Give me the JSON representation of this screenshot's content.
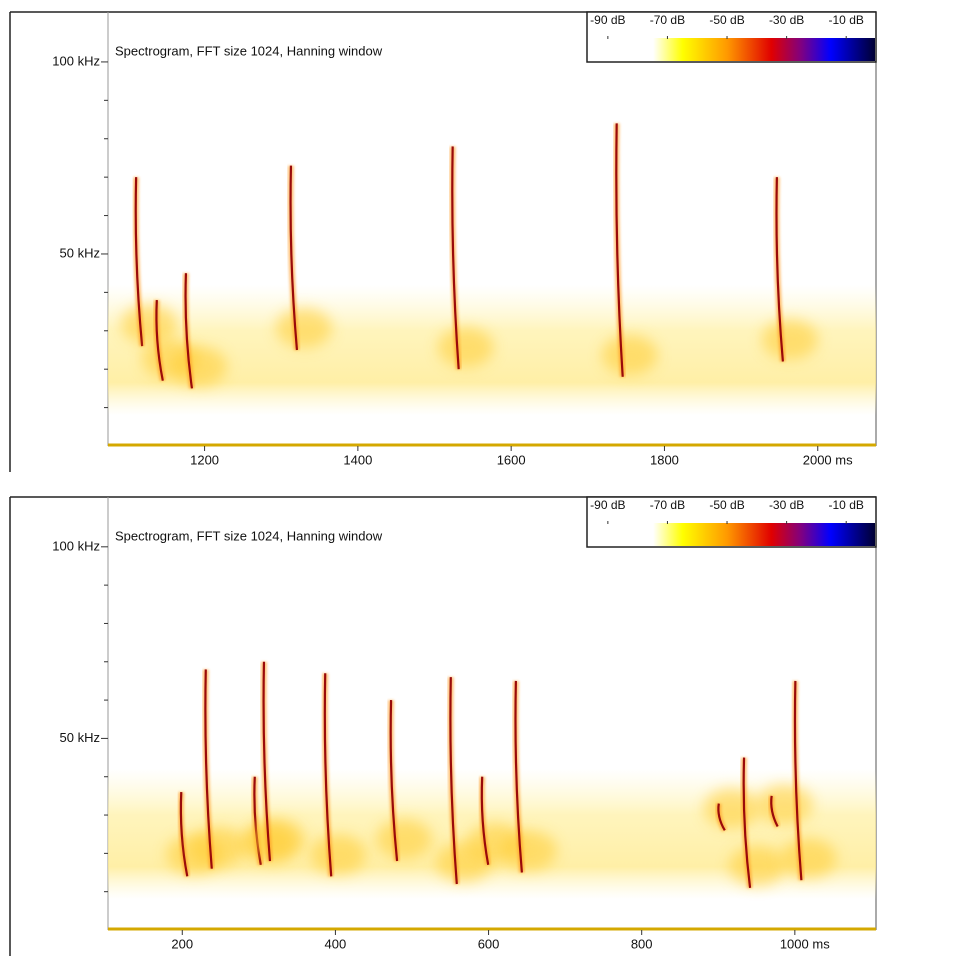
{
  "chart_data": [
    {
      "type": "spectrogram",
      "title": "Spectrogram, FFT size 1024, Hanning window",
      "xlim": [
        1074,
        2076
      ],
      "ylim": [
        0,
        113
      ],
      "xticks": [
        1200,
        1400,
        1600,
        1800,
        {
          "value": 2000,
          "label": "2000 ms"
        }
      ],
      "yticks": [
        {
          "value": 50,
          "label": "50 kHz"
        },
        {
          "value": 100,
          "label": "100 kHz"
        }
      ],
      "yminorticks": [
        10,
        20,
        30,
        40,
        60,
        70,
        80,
        90
      ],
      "calls": {
        "x": [
          1112,
          1139,
          1177,
          1314,
          1525,
          1739,
          1948
        ],
        "top": [
          70,
          38,
          45,
          73,
          78,
          84,
          70
        ],
        "bottom": [
          26,
          17,
          15,
          25,
          20,
          18,
          22
        ]
      },
      "colorbar": {
        "lim": [
          -97,
          0
        ],
        "ticks": [
          {
            "value": -90,
            "label": "-90 dB"
          },
          {
            "value": -70,
            "label": "-70 dB"
          },
          {
            "value": -50,
            "label": "-50 dB"
          },
          {
            "value": -30,
            "label": "-30 dB"
          },
          {
            "value": -10,
            "label": "-10 dB"
          }
        ],
        "colormap": [
          {
            "value": -97,
            "color": "#ffffff"
          },
          {
            "value": -75,
            "color": "#ffffff"
          },
          {
            "value": -65,
            "color": "#ffff00"
          },
          {
            "value": -50,
            "color": "#ff9900"
          },
          {
            "value": -35,
            "color": "#e00000"
          },
          {
            "value": -25,
            "color": "#800080"
          },
          {
            "value": -15,
            "color": "#0000ff"
          },
          {
            "value": 0,
            "color": "#000033"
          }
        ]
      }
    },
    {
      "type": "spectrogram",
      "title": "Spectrogram, FFT size 1024, Hanning window",
      "xlim": [
        103,
        1106
      ],
      "ylim": [
        0,
        113
      ],
      "xticks": [
        200,
        400,
        600,
        800,
        {
          "value": 1000,
          "label": "1000 ms"
        }
      ],
      "yticks": [
        {
          "value": 50,
          "label": "50 kHz"
        },
        {
          "value": 100,
          "label": "100 kHz"
        }
      ],
      "yminorticks": [
        10,
        20,
        30,
        40,
        60,
        70,
        80,
        90
      ],
      "calls": {
        "x": [
          200,
          232,
          296,
          308,
          388,
          474,
          552,
          593,
          637,
          902,
          935,
          971,
          1002
        ],
        "top": [
          36,
          68,
          40,
          70,
          67,
          60,
          66,
          40,
          65,
          33,
          45,
          35,
          65
        ],
        "bottom": [
          14,
          16,
          17,
          18,
          14,
          18,
          12,
          17,
          15,
          26,
          11,
          27,
          13
        ]
      },
      "colorbar": {
        "lim": [
          -97,
          0
        ],
        "ticks": [
          {
            "value": -90,
            "label": "-90 dB"
          },
          {
            "value": -70,
            "label": "-70 dB"
          },
          {
            "value": -50,
            "label": "-50 dB"
          },
          {
            "value": -30,
            "label": "-30 dB"
          },
          {
            "value": -10,
            "label": "-10 dB"
          }
        ],
        "colormap": [
          {
            "value": -97,
            "color": "#ffffff"
          },
          {
            "value": -75,
            "color": "#ffffff"
          },
          {
            "value": -65,
            "color": "#ffff00"
          },
          {
            "value": -50,
            "color": "#ff9900"
          },
          {
            "value": -35,
            "color": "#e00000"
          },
          {
            "value": -25,
            "color": "#800080"
          },
          {
            "value": -15,
            "color": "#0000ff"
          },
          {
            "value": 0,
            "color": "#000033"
          }
        ]
      }
    }
  ]
}
